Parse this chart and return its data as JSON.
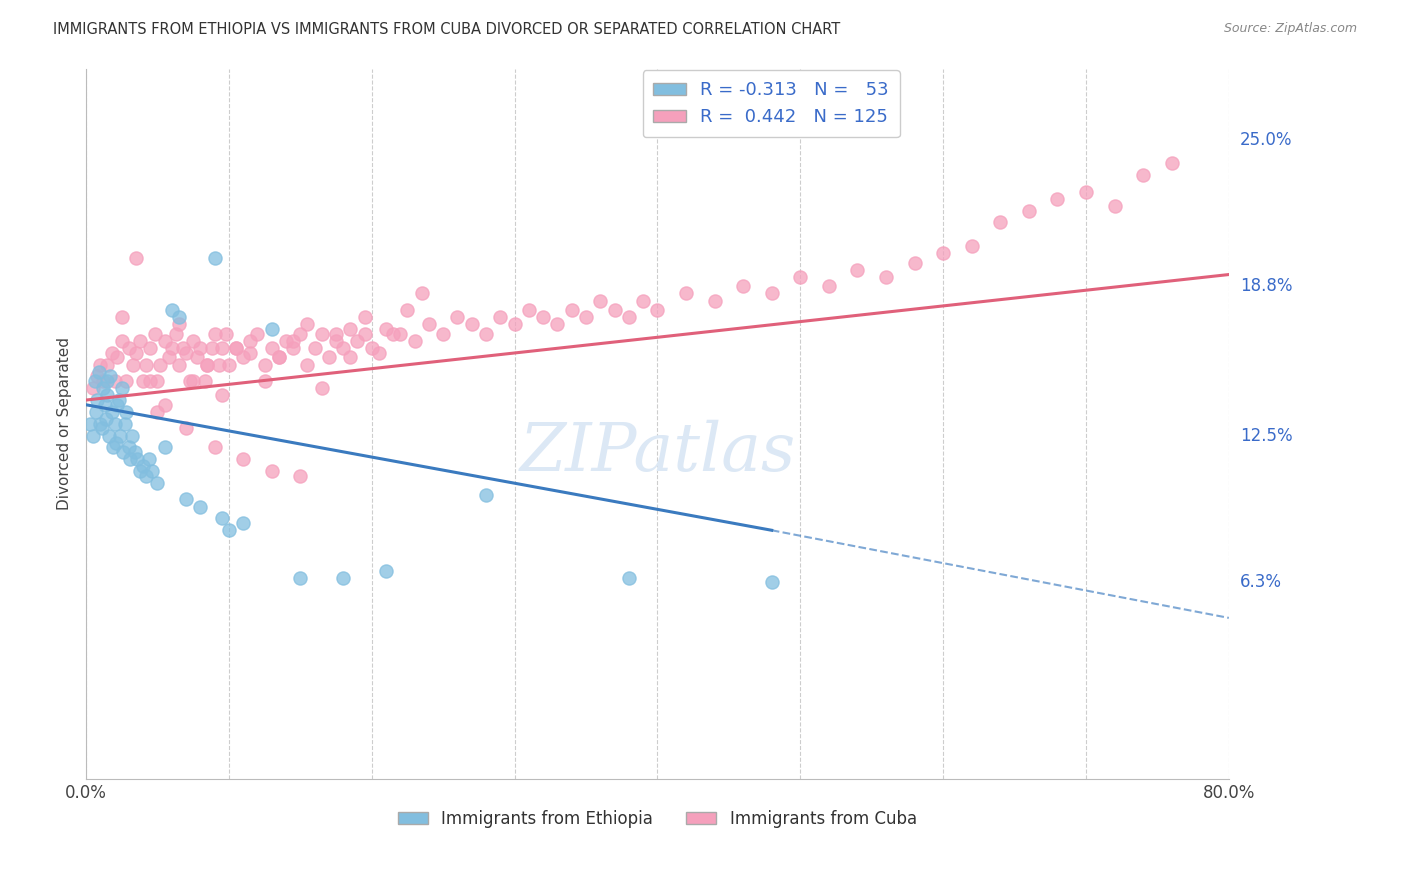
{
  "title": "IMMIGRANTS FROM ETHIOPIA VS IMMIGRANTS FROM CUBA DIVORCED OR SEPARATED CORRELATION CHART",
  "source": "Source: ZipAtlas.com",
  "ylabel": "Divorced or Separated",
  "y_tick_labels_right": [
    "6.3%",
    "12.5%",
    "18.8%",
    "25.0%"
  ],
  "y_tick_values_right": [
    0.063,
    0.125,
    0.188,
    0.25
  ],
  "xlim": [
    0.0,
    0.8
  ],
  "ylim": [
    -0.02,
    0.28
  ],
  "ethiopia_R": -0.313,
  "ethiopia_N": 53,
  "cuba_R": 0.442,
  "cuba_N": 125,
  "ethiopia_color": "#82bedf",
  "cuba_color": "#f5a0bc",
  "ethiopia_line_color": "#3a7abf",
  "cuba_line_color": "#e0607a",
  "legend_text_color": "#3a6bc9",
  "background_color": "#ffffff",
  "grid_color": "#c8c8c8",
  "watermark_color": "#dce8f5",
  "ethiopia_scatter_x": [
    0.003,
    0.005,
    0.006,
    0.007,
    0.008,
    0.009,
    0.01,
    0.011,
    0.012,
    0.013,
    0.014,
    0.015,
    0.015,
    0.016,
    0.017,
    0.018,
    0.019,
    0.02,
    0.021,
    0.022,
    0.023,
    0.024,
    0.025,
    0.026,
    0.027,
    0.028,
    0.03,
    0.031,
    0.032,
    0.034,
    0.036,
    0.038,
    0.04,
    0.042,
    0.044,
    0.046,
    0.05,
    0.055,
    0.06,
    0.065,
    0.07,
    0.08,
    0.09,
    0.095,
    0.1,
    0.11,
    0.13,
    0.15,
    0.18,
    0.21,
    0.28,
    0.38,
    0.48
  ],
  "ethiopia_scatter_y": [
    0.13,
    0.125,
    0.148,
    0.135,
    0.14,
    0.152,
    0.13,
    0.128,
    0.145,
    0.138,
    0.132,
    0.142,
    0.148,
    0.125,
    0.15,
    0.135,
    0.12,
    0.13,
    0.122,
    0.138,
    0.14,
    0.125,
    0.145,
    0.118,
    0.13,
    0.135,
    0.12,
    0.115,
    0.125,
    0.118,
    0.115,
    0.11,
    0.112,
    0.108,
    0.115,
    0.11,
    0.105,
    0.12,
    0.178,
    0.175,
    0.098,
    0.095,
    0.2,
    0.09,
    0.085,
    0.088,
    0.17,
    0.065,
    0.065,
    0.068,
    0.1,
    0.065,
    0.063
  ],
  "cuba_scatter_x": [
    0.005,
    0.008,
    0.01,
    0.012,
    0.015,
    0.018,
    0.02,
    0.022,
    0.025,
    0.028,
    0.03,
    0.033,
    0.035,
    0.038,
    0.04,
    0.042,
    0.045,
    0.048,
    0.05,
    0.052,
    0.055,
    0.058,
    0.06,
    0.063,
    0.065,
    0.068,
    0.07,
    0.073,
    0.075,
    0.078,
    0.08,
    0.083,
    0.085,
    0.088,
    0.09,
    0.093,
    0.095,
    0.098,
    0.1,
    0.105,
    0.11,
    0.115,
    0.12,
    0.125,
    0.13,
    0.135,
    0.14,
    0.145,
    0.15,
    0.155,
    0.16,
    0.165,
    0.17,
    0.175,
    0.18,
    0.185,
    0.19,
    0.195,
    0.2,
    0.21,
    0.22,
    0.23,
    0.24,
    0.25,
    0.26,
    0.27,
    0.28,
    0.29,
    0.3,
    0.31,
    0.32,
    0.33,
    0.34,
    0.35,
    0.36,
    0.37,
    0.38,
    0.39,
    0.4,
    0.42,
    0.44,
    0.46,
    0.48,
    0.5,
    0.52,
    0.54,
    0.56,
    0.58,
    0.6,
    0.62,
    0.64,
    0.66,
    0.68,
    0.7,
    0.72,
    0.74,
    0.76,
    0.025,
    0.035,
    0.045,
    0.055,
    0.065,
    0.075,
    0.085,
    0.095,
    0.105,
    0.115,
    0.125,
    0.135,
    0.145,
    0.155,
    0.165,
    0.175,
    0.185,
    0.195,
    0.205,
    0.215,
    0.225,
    0.235,
    0.05,
    0.07,
    0.09,
    0.11,
    0.13,
    0.15
  ],
  "cuba_scatter_y": [
    0.145,
    0.15,
    0.155,
    0.148,
    0.155,
    0.16,
    0.148,
    0.158,
    0.165,
    0.148,
    0.162,
    0.155,
    0.16,
    0.165,
    0.148,
    0.155,
    0.162,
    0.168,
    0.148,
    0.155,
    0.165,
    0.158,
    0.162,
    0.168,
    0.155,
    0.162,
    0.16,
    0.148,
    0.165,
    0.158,
    0.162,
    0.148,
    0.155,
    0.162,
    0.168,
    0.155,
    0.162,
    0.168,
    0.155,
    0.162,
    0.158,
    0.165,
    0.168,
    0.155,
    0.162,
    0.158,
    0.165,
    0.162,
    0.168,
    0.155,
    0.162,
    0.168,
    0.158,
    0.165,
    0.162,
    0.17,
    0.165,
    0.168,
    0.162,
    0.17,
    0.168,
    0.165,
    0.172,
    0.168,
    0.175,
    0.172,
    0.168,
    0.175,
    0.172,
    0.178,
    0.175,
    0.172,
    0.178,
    0.175,
    0.182,
    0.178,
    0.175,
    0.182,
    0.178,
    0.185,
    0.182,
    0.188,
    0.185,
    0.192,
    0.188,
    0.195,
    0.192,
    0.198,
    0.202,
    0.205,
    0.215,
    0.22,
    0.225,
    0.228,
    0.222,
    0.235,
    0.24,
    0.175,
    0.2,
    0.148,
    0.138,
    0.172,
    0.148,
    0.155,
    0.142,
    0.162,
    0.16,
    0.148,
    0.158,
    0.165,
    0.172,
    0.145,
    0.168,
    0.158,
    0.175,
    0.16,
    0.168,
    0.178,
    0.185,
    0.135,
    0.128,
    0.12,
    0.115,
    0.11,
    0.108
  ],
  "eth_line_x_start": 0.0,
  "eth_line_x_solid_end": 0.48,
  "eth_line_x_dash_end": 0.8,
  "eth_line_y_at_0": 0.138,
  "eth_line_y_at_048": 0.085,
  "eth_line_y_at_080": 0.048,
  "cuba_line_x_start": 0.0,
  "cuba_line_x_end": 0.8,
  "cuba_line_y_at_0": 0.14,
  "cuba_line_y_at_080": 0.193
}
